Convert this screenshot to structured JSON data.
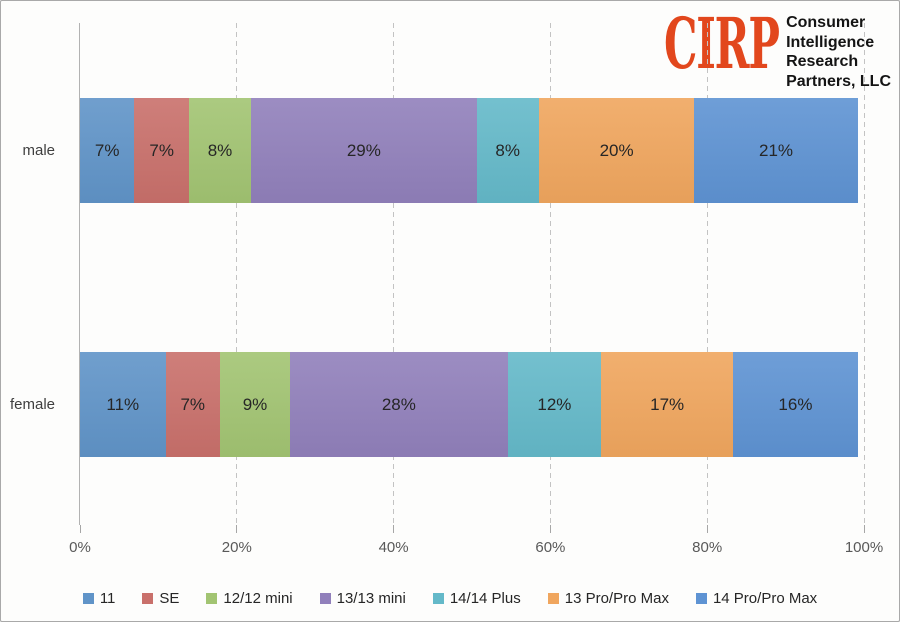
{
  "logo": {
    "acronym": "CIRP",
    "accent_color": "#e2471d",
    "name_lines": [
      "Consumer",
      "Intelligence",
      "Research",
      "Partners, LLC"
    ],
    "text_color": "#141414"
  },
  "chart_data": {
    "type": "bar",
    "orientation": "horizontal-stacked",
    "title": "",
    "xlabel": "",
    "ylabel": "",
    "xlim": [
      0,
      100
    ],
    "x_ticks": [
      "0%",
      "20%",
      "40%",
      "60%",
      "80%",
      "100%"
    ],
    "grid": "dashed-vertical",
    "legend_position": "bottom",
    "value_suffix": "%",
    "categories": [
      "male",
      "female"
    ],
    "series": [
      {
        "name": "11",
        "color": "#6094c8",
        "values": [
          7,
          11
        ]
      },
      {
        "name": "SE",
        "color": "#c9706b",
        "values": [
          7,
          7
        ]
      },
      {
        "name": "12/12 mini",
        "color": "#a2c472",
        "values": [
          8,
          9
        ]
      },
      {
        "name": "13/13 mini",
        "color": "#9180bb",
        "values": [
          29,
          28
        ]
      },
      {
        "name": "14/14 Plus",
        "color": "#64b9c9",
        "values": [
          8,
          12
        ]
      },
      {
        "name": "13 Pro/Pro Max",
        "color": "#f0a65e",
        "values": [
          20,
          17
        ]
      },
      {
        "name": "14 Pro/Pro Max",
        "color": "#5e93d3",
        "values": [
          21,
          16
        ]
      }
    ]
  }
}
